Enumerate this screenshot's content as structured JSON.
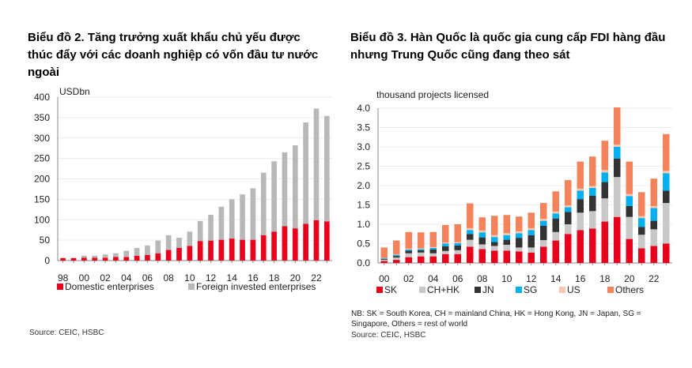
{
  "chart_data": [
    {
      "type": "bar",
      "stacked": true,
      "title": "Biểu đồ 2. Tăng trưởng xuất khẩu chủ yếu được thúc đẩy với các doanh nghiệp có vốn đầu tư nước ngoài",
      "ylabel": "USDbn",
      "ylim": [
        0,
        400
      ],
      "yticks": [
        0,
        50,
        100,
        150,
        200,
        250,
        300,
        350,
        400
      ],
      "x": [
        "98",
        "99",
        "00",
        "01",
        "02",
        "03",
        "04",
        "05",
        "06",
        "07",
        "08",
        "09",
        "10",
        "11",
        "12",
        "13",
        "14",
        "15",
        "16",
        "17",
        "18",
        "19",
        "20",
        "21",
        "22",
        "23"
      ],
      "xtick_labels": [
        "98",
        "00",
        "02",
        "04",
        "06",
        "08",
        "10",
        "12",
        "14",
        "16",
        "18",
        "20",
        "22"
      ],
      "series": [
        {
          "name": "Domestic enterprises",
          "color": "#e8001c",
          "values": [
            6,
            6,
            7,
            7,
            7,
            9,
            9,
            12,
            14,
            18,
            26,
            31,
            36,
            48,
            49,
            51,
            54,
            51,
            51,
            62,
            71,
            84,
            79,
            90,
            99,
            96
          ]
        },
        {
          "name": "Foreign invested enterprises",
          "color": "#b8b8b8",
          "values": [
            1,
            1,
            5,
            5,
            8,
            9,
            15,
            19,
            23,
            31,
            36,
            25,
            35,
            49,
            63,
            81,
            96,
            111,
            126,
            153,
            172,
            181,
            203,
            248,
            273,
            258
          ]
        }
      ],
      "legend": "bottom",
      "source": "Source: CEIC, HSBC"
    },
    {
      "type": "bar",
      "stacked": true,
      "title": "Biểu đồ 3. Hàn Quốc là quốc gia cung cấp FDI hàng đầu nhưng Trung Quốc cũng đang theo sát",
      "ylabel": "thousand projects licensed",
      "ylim": [
        0,
        4
      ],
      "yticks": [
        "0.0",
        "0.5",
        "1.0",
        "1.5",
        "2.0",
        "2.5",
        "3.0",
        "3.5",
        "4.0"
      ],
      "x": [
        "00",
        "01",
        "02",
        "03",
        "04",
        "05",
        "06",
        "07",
        "08",
        "09",
        "10",
        "11",
        "12",
        "13",
        "14",
        "15",
        "16",
        "17",
        "18",
        "19",
        "20",
        "21",
        "22",
        "23"
      ],
      "xtick_labels": [
        "00",
        "02",
        "04",
        "06",
        "08",
        "10",
        "12",
        "14",
        "16",
        "18",
        "20",
        "22"
      ],
      "series": [
        {
          "name": "SK",
          "color": "#e8001c",
          "values": [
            0.05,
            0.08,
            0.15,
            0.17,
            0.17,
            0.23,
            0.23,
            0.42,
            0.36,
            0.32,
            0.32,
            0.3,
            0.27,
            0.42,
            0.58,
            0.75,
            0.85,
            0.89,
            1.07,
            1.19,
            0.62,
            0.38,
            0.44,
            0.5
          ]
        },
        {
          "name": "CH+HK",
          "color": "#c8c8c8",
          "values": [
            0.03,
            0.06,
            0.1,
            0.1,
            0.08,
            0.08,
            0.1,
            0.18,
            0.12,
            0.12,
            0.15,
            0.1,
            0.13,
            0.17,
            0.22,
            0.25,
            0.45,
            0.45,
            0.6,
            1.03,
            0.57,
            0.35,
            0.43,
            1.05
          ]
        },
        {
          "name": "JN",
          "color": "#333333",
          "values": [
            0.02,
            0.04,
            0.07,
            0.06,
            0.1,
            0.12,
            0.12,
            0.15,
            0.18,
            0.1,
            0.13,
            0.25,
            0.32,
            0.37,
            0.35,
            0.32,
            0.35,
            0.4,
            0.42,
            0.48,
            0.28,
            0.2,
            0.22,
            0.32
          ]
        },
        {
          "name": "SG",
          "color": "#00b0f0",
          "values": [
            0.02,
            0.03,
            0.03,
            0.03,
            0.04,
            0.07,
            0.06,
            0.1,
            0.13,
            0.13,
            0.12,
            0.12,
            0.13,
            0.13,
            0.13,
            0.12,
            0.22,
            0.2,
            0.25,
            0.3,
            0.26,
            0.23,
            0.33,
            0.45
          ]
        },
        {
          "name": "US",
          "color": "#fac8b0",
          "values": [
            0.01,
            0.01,
            0.02,
            0.02,
            0.02,
            0.03,
            0.03,
            0.05,
            0.05,
            0.05,
            0.05,
            0.05,
            0.05,
            0.05,
            0.05,
            0.05,
            0.05,
            0.05,
            0.06,
            0.06,
            0.05,
            0.05,
            0.05,
            0.06
          ]
        },
        {
          "name": "Others",
          "color": "#f4835c",
          "values": [
            0.27,
            0.36,
            0.43,
            0.41,
            0.39,
            0.45,
            0.46,
            0.64,
            0.34,
            0.5,
            0.47,
            0.38,
            0.4,
            0.41,
            0.52,
            0.65,
            0.7,
            0.76,
            0.76,
            0.96,
            0.84,
            0.62,
            0.71,
            0.95
          ]
        }
      ],
      "legend": "bottom",
      "note": "NB: SK = South Korea, CH = mainland China, HK = Hong Kong, JN = Japan, SG = Singapore, Others = rest of world",
      "source": "Source: CEIC, HSBC"
    }
  ]
}
